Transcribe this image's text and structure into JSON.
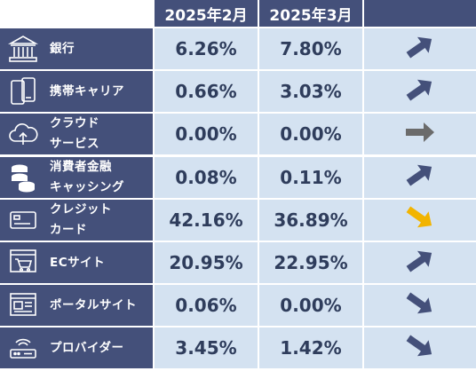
{
  "header": {
    "col1": "2025年2月",
    "col2": "2025年3月"
  },
  "rows": [
    {
      "label_line1": "銀行",
      "label_line2": "",
      "feb": "6.26%",
      "mar": "7.80%",
      "icon": "bank-icon",
      "trend": "up",
      "trend_color": "#44507a"
    },
    {
      "label_line1": "携帯キャリア",
      "label_line2": "",
      "feb": "0.66%",
      "mar": "3.03%",
      "icon": "smartphone-icon",
      "trend": "up",
      "trend_color": "#44507a"
    },
    {
      "label_line1": "クラウド",
      "label_line2": "サービス",
      "feb": "0.00%",
      "mar": "0.00%",
      "icon": "cloud-upload-icon",
      "trend": "flat",
      "trend_color": "#6b6b6b"
    },
    {
      "label_line1": "消費者金融",
      "label_line2": "キャッシング",
      "feb": "0.08%",
      "mar": "0.11%",
      "icon": "coins-icon",
      "trend": "up",
      "trend_color": "#44507a"
    },
    {
      "label_line1": "クレジット",
      "label_line2": "カード",
      "feb": "42.16%",
      "mar": "36.89%",
      "icon": "credit-card-icon",
      "trend": "down",
      "trend_color": "#f2b400"
    },
    {
      "label_line1": "ECサイト",
      "label_line2": "",
      "feb": "20.95%",
      "mar": "22.95%",
      "icon": "shopping-cart-icon",
      "trend": "up",
      "trend_color": "#44507a"
    },
    {
      "label_line1": "ポータルサイト",
      "label_line2": "",
      "feb": "0.06%",
      "mar": "0.00%",
      "icon": "browser-window-icon",
      "trend": "down",
      "trend_color": "#44507a"
    },
    {
      "label_line1": "プロバイダー",
      "label_line2": "",
      "feb": "3.45%",
      "mar": "1.42%",
      "icon": "router-icon",
      "trend": "down",
      "trend_color": "#44507a"
    }
  ]
}
